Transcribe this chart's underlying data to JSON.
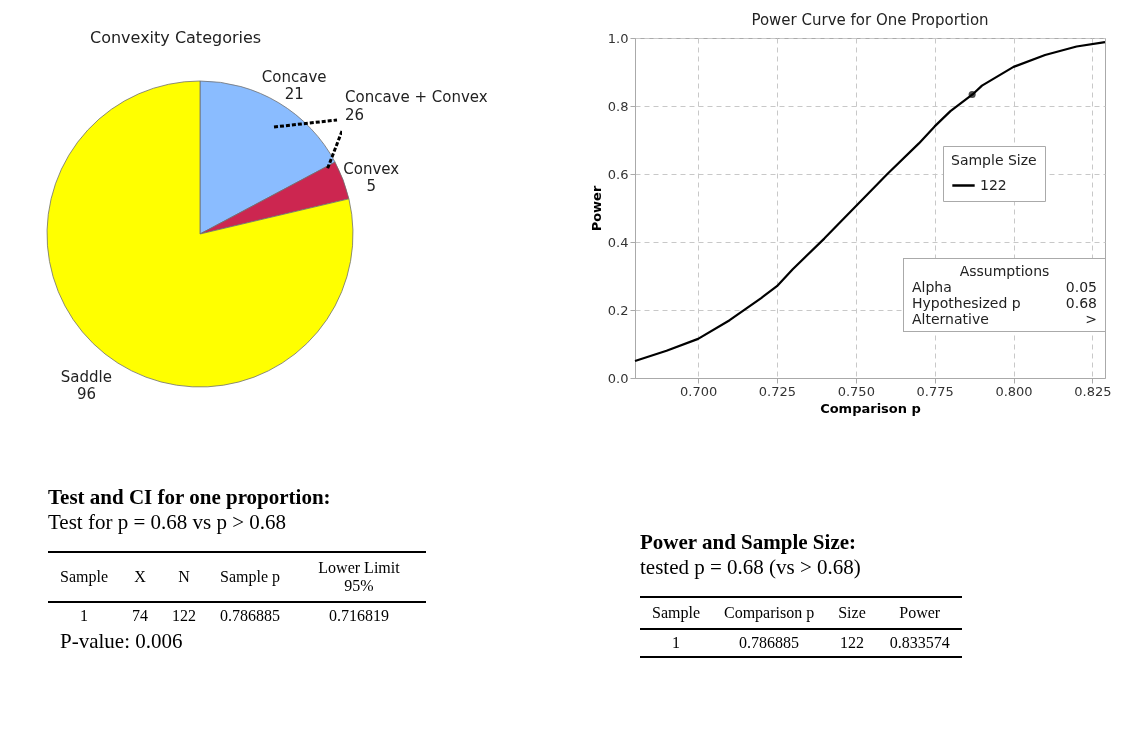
{
  "chart_data": [
    {
      "type": "pie",
      "title": "Convexity Categories",
      "categories": [
        "Concave",
        "Convex",
        "Saddle"
      ],
      "values": [
        21,
        5,
        96
      ],
      "colors": [
        "#8abcff",
        "#cc2650",
        "#ffff00"
      ],
      "data_labels": true,
      "annotations": [
        "Concave + Convex\n26"
      ]
    },
    {
      "type": "line",
      "title": "Power Curve for One Proportion",
      "xlabel": "Comparison p",
      "ylabel": "Power",
      "legend_title": "Sample Size",
      "legend": "right",
      "grid": true,
      "xlim": [
        0.68,
        0.829
      ],
      "ylim": [
        0,
        1
      ],
      "xticks": [
        {
          "value": 0.7,
          "label": "0.700"
        },
        {
          "value": 0.725,
          "label": "0.725"
        },
        {
          "value": 0.75,
          "label": "0.750"
        },
        {
          "value": 0.775,
          "label": "0.775"
        },
        {
          "value": 0.8,
          "label": "0.800"
        },
        {
          "value": 0.825,
          "label": "0.825"
        }
      ],
      "yticks": [
        {
          "value": 0,
          "label": "0.0"
        },
        0.2,
        0.4,
        0.6,
        0.8,
        {
          "value": 1,
          "label": "1.0"
        }
      ],
      "series": [
        {
          "name": "122",
          "color": "#000000",
          "x": [
            0.68,
            0.69,
            0.7,
            0.71,
            0.72,
            0.725,
            0.73,
            0.74,
            0.75,
            0.76,
            0.77,
            0.775,
            0.78,
            0.787,
            0.79,
            0.8,
            0.81,
            0.82,
            0.829
          ],
          "values": [
            0.05,
            0.08,
            0.115,
            0.17,
            0.235,
            0.27,
            0.32,
            0.41,
            0.505,
            0.6,
            0.69,
            0.74,
            0.785,
            0.834,
            0.86,
            0.915,
            0.95,
            0.975,
            0.988
          ]
        },
        {
          "type": "scatter",
          "color": "#000000",
          "x": [
            0.786885
          ],
          "values": [
            0.833574
          ]
        }
      ],
      "annotations": [
        "Assumptions",
        "Alpha\t0.05",
        "Hypothesized p\t0.68",
        "Alternative\t>"
      ]
    },
    {
      "type": "other",
      "title": "Test and CI for one proportion:",
      "subtitle": "Test for p = 0.68 vs p > 0.68",
      "categories": [
        "Sample",
        "X",
        "N",
        "Sample p",
        "Lower Limit 95%"
      ],
      "values": [
        1,
        74,
        122,
        0.786885,
        0.716819
      ],
      "data_labels": true,
      "annotations": [
        "P-value: 0.006"
      ]
    },
    {
      "type": "other",
      "title": "Power and Sample Size:",
      "subtitle": "tested p = 0.68 (vs > 0.68)",
      "categories": [
        "Sample",
        "Comparison p",
        "Size",
        "Power"
      ],
      "values": [
        1,
        0.786885,
        122,
        0.833574
      ],
      "data_labels": true
    }
  ]
}
